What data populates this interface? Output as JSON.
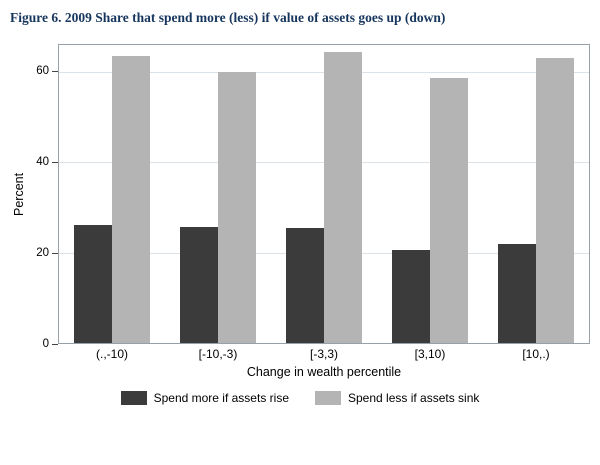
{
  "title": "Figure 6. 2009 Share that spend more (less) if value of assets goes up (down)",
  "chart_data": {
    "type": "bar",
    "categories": [
      "(.,-10)",
      "[-10,-3)",
      "[-3,3)",
      "[3,10)",
      "[10,.)"
    ],
    "series": [
      {
        "name": "Spend more if assets rise",
        "color": "#3b3b3b",
        "values": [
          26.2,
          25.7,
          25.4,
          20.6,
          22.0
        ]
      },
      {
        "name": "Spend less if assets sink",
        "color": "#b4b4b4",
        "values": [
          63.5,
          60.0,
          64.5,
          58.6,
          63.2
        ]
      }
    ],
    "title": "Figure 6. 2009 Share that spend more (less) if value of assets goes up (down)",
    "xlabel": "Change in wealth percentile",
    "ylabel": "Percent",
    "yticks": [
      0,
      20,
      40,
      60
    ],
    "ylim": [
      0,
      66
    ],
    "grid": true,
    "legend_position": "bottom"
  }
}
